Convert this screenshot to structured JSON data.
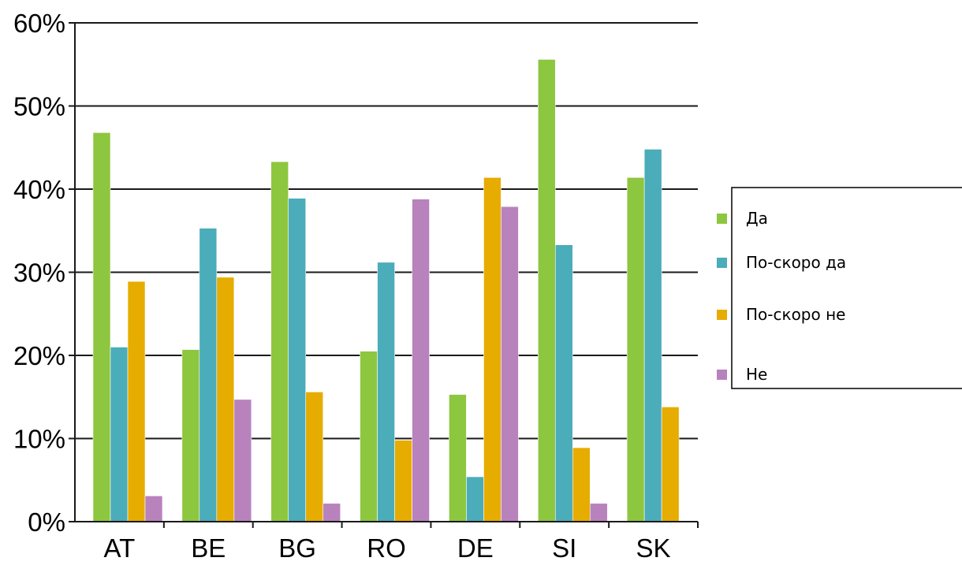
{
  "chart_data": {
    "type": "bar",
    "categories": [
      "AT",
      "BE",
      "BG",
      "RO",
      "DE",
      "SI",
      "SK"
    ],
    "series": [
      {
        "name": "Да",
        "color": "#8dc63f",
        "values": [
          46.8,
          20.7,
          43.3,
          20.5,
          15.3,
          55.6,
          41.4
        ]
      },
      {
        "name": "По-скоро да",
        "color": "#4bacba",
        "values": [
          21.0,
          35.3,
          38.9,
          31.2,
          5.4,
          33.3,
          44.8
        ]
      },
      {
        "name": "По-скоро не",
        "color": "#e6ac00",
        "values": [
          28.9,
          29.4,
          15.6,
          9.8,
          41.4,
          8.9,
          13.8
        ]
      },
      {
        "name": "Не",
        "color": "#b882bd",
        "values": [
          3.1,
          14.7,
          2.2,
          38.8,
          37.9,
          2.2,
          null
        ]
      }
    ],
    "y_tick_labels": [
      "0%",
      "10%",
      "20%",
      "30%",
      "40%",
      "50%",
      "60%"
    ],
    "y_ticks": [
      0,
      10,
      20,
      30,
      40,
      50,
      60
    ],
    "ylim": [
      0,
      60
    ],
    "grid": true,
    "legend_position": "right",
    "title": "",
    "xlabel": "",
    "ylabel": ""
  }
}
